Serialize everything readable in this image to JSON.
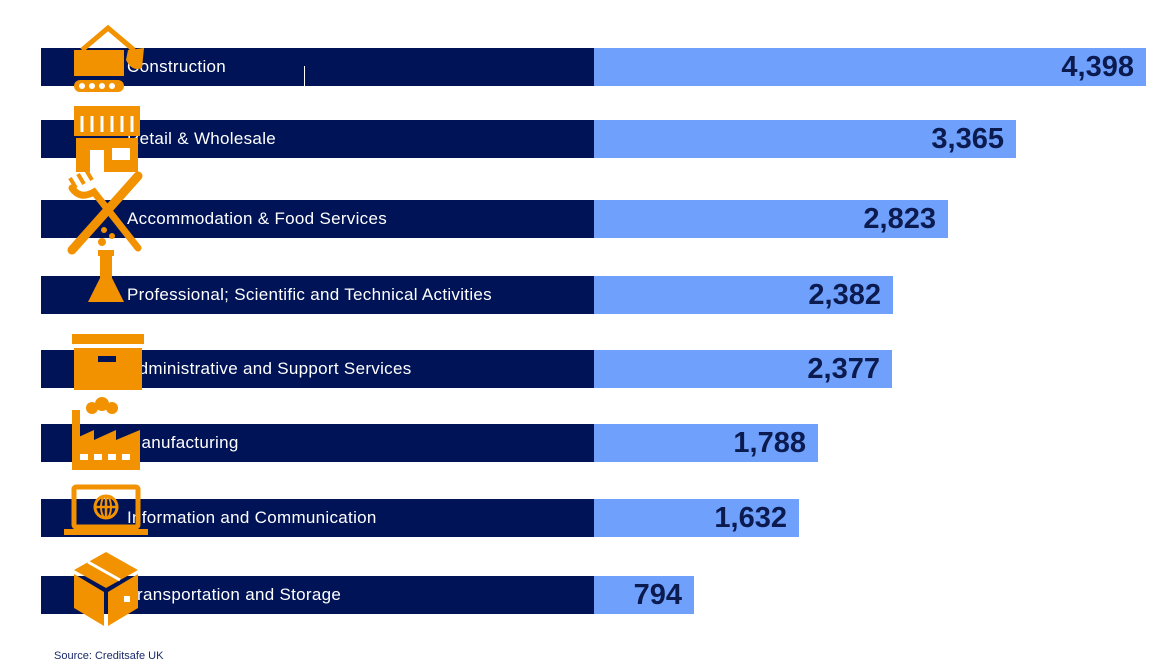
{
  "chart_data": {
    "type": "bar",
    "orientation": "horizontal",
    "categories": [
      "Construction",
      "Retail & Wholesale",
      "Accommodation & Food Services",
      "Professional; Scientific and Technical Activities",
      "Administrative and Support Services",
      "Manufacturing",
      "Information and Communication",
      "Transportation and Storage"
    ],
    "values": [
      4398,
      3365,
      2823,
      2382,
      2377,
      1788,
      1632,
      794
    ],
    "value_labels": [
      "4,398",
      "3,365",
      "2,823",
      "2,382",
      "2,377",
      "1,788",
      "1,632",
      "794"
    ],
    "icons": [
      "excavator-icon",
      "storefront-icon",
      "fork-knife-icon",
      "flask-icon",
      "box-icon",
      "factory-icon",
      "laptop-globe-icon",
      "package-icon"
    ],
    "title": "",
    "xlabel": "",
    "ylabel": "",
    "legend": "none",
    "grid": false
  },
  "source": "Source: Creditsafe UK",
  "colors": {
    "label_bar": "#001356",
    "value_bar": "#6fa0fb",
    "icon": "#f39200",
    "value_text": "#0b1a4f",
    "background": "#ffffff"
  }
}
